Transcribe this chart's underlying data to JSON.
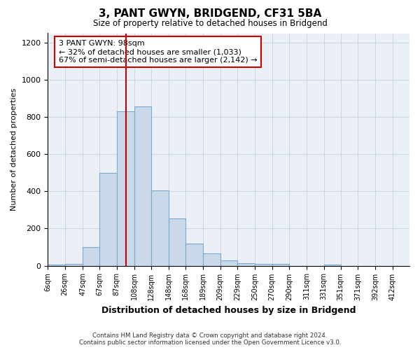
{
  "title": "3, PANT GWYN, BRIDGEND, CF31 5BA",
  "subtitle": "Size of property relative to detached houses in Bridgend",
  "xlabel": "Distribution of detached houses by size in Bridgend",
  "ylabel": "Number of detached properties",
  "footnote1": "Contains HM Land Registry data © Crown copyright and database right 2024.",
  "footnote2": "Contains public sector information licensed under the Open Government Licence v3.0.",
  "annotation_line1": "3 PANT GWYN: 98sqm",
  "annotation_line2": "← 32% of detached houses are smaller (1,033)",
  "annotation_line3": "67% of semi-detached houses are larger (2,142) →",
  "bar_color": "#c9d9ea",
  "bar_edge_color": "#7aaace",
  "vline_color": "#cc0000",
  "vline_x": 98,
  "categories": [
    "6sqm",
    "26sqm",
    "47sqm",
    "67sqm",
    "87sqm",
    "108sqm",
    "128sqm",
    "148sqm",
    "168sqm",
    "189sqm",
    "209sqm",
    "229sqm",
    "250sqm",
    "270sqm",
    "290sqm",
    "311sqm",
    "331sqm",
    "351sqm",
    "371sqm",
    "392sqm",
    "412sqm"
  ],
  "bin_edges": [
    6,
    26,
    47,
    67,
    87,
    108,
    128,
    148,
    168,
    189,
    209,
    229,
    250,
    270,
    290,
    311,
    331,
    351,
    371,
    392,
    412,
    432
  ],
  "values": [
    5,
    10,
    100,
    500,
    830,
    855,
    405,
    255,
    120,
    65,
    30,
    15,
    10,
    10,
    0,
    0,
    5,
    0,
    0,
    0,
    0
  ],
  "ylim": [
    0,
    1250
  ],
  "yticks": [
    0,
    200,
    400,
    600,
    800,
    1000,
    1200
  ],
  "grid_color": "#c8d4de",
  "bg_color": "#eaf0f6",
  "annotation_box_facecolor": "#ffffff",
  "annotation_box_edgecolor": "#cc0000"
}
